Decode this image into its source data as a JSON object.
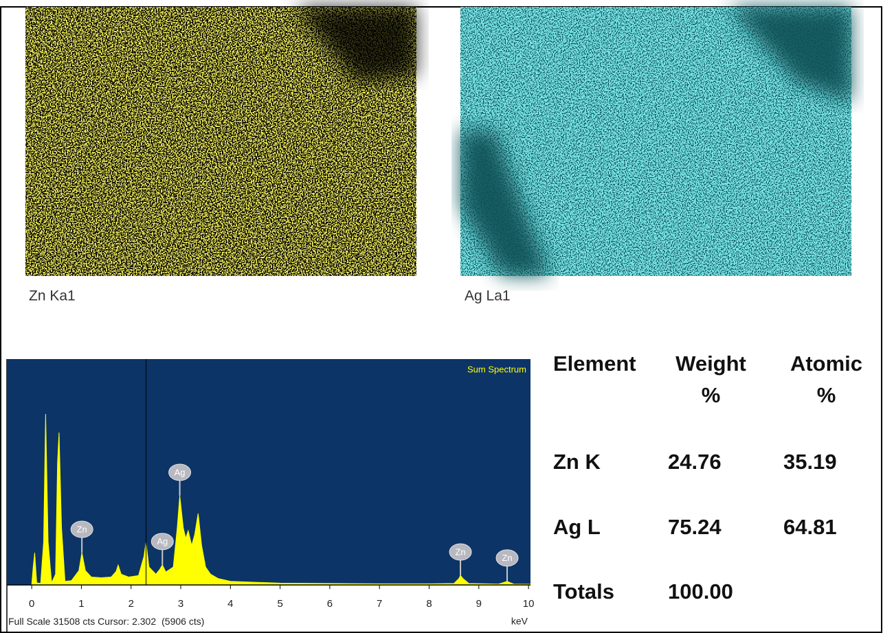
{
  "maps": [
    {
      "label": "Zn Ka1"
    },
    {
      "label": "Ag La1"
    }
  ],
  "chart_data": {
    "type": "area",
    "title": "Sum Spectrum",
    "color": "#ffff00",
    "background": "#0c3466",
    "x": [
      -0.5,
      0,
      0.03,
      0.06,
      0.1,
      0.18,
      0.24,
      0.28,
      0.33,
      0.4,
      0.48,
      0.52,
      0.55,
      0.6,
      0.67,
      0.8,
      0.95,
      1.01,
      1.08,
      1.2,
      1.4,
      1.6,
      1.7,
      1.74,
      1.8,
      1.95,
      2.15,
      2.26,
      2.3,
      2.36,
      2.5,
      2.58,
      2.63,
      2.7,
      2.85,
      2.93,
      2.98,
      3.05,
      3.1,
      3.15,
      3.22,
      3.28,
      3.35,
      3.42,
      3.5,
      3.6,
      3.75,
      4,
      5,
      6,
      7,
      8,
      8.5,
      8.6,
      8.63,
      8.68,
      8.8,
      9.4,
      9.57,
      9.7,
      10.04
    ],
    "values": [
      0,
      0,
      2500,
      4500,
      300,
      200,
      6000,
      23850,
      6000,
      300,
      1500,
      17000,
      21260,
      8000,
      500,
      600,
      2000,
      4500,
      2000,
      1100,
      1000,
      1100,
      1900,
      2780,
      1500,
      1100,
      1300,
      4000,
      5940,
      2500,
      1500,
      2200,
      2800,
      1800,
      2500,
      8000,
      12450,
      8000,
      6500,
      7570,
      5500,
      7000,
      9960,
      5500,
      2500,
      1500,
      900,
      500,
      250,
      200,
      150,
      150,
      200,
      900,
      1340,
      900,
      200,
      120,
      500,
      120,
      100
    ],
    "xlim": [
      -0.5,
      10.04
    ],
    "xticks": [
      0,
      1,
      2,
      3,
      4,
      5,
      6,
      7,
      8,
      9,
      10
    ],
    "x_unit": "keV",
    "ylim": [
      0,
      31508
    ],
    "annotations": [
      {
        "text": "Zn",
        "x": 1.01
      },
      {
        "text": "Ag",
        "x": 2.63
      },
      {
        "text": "Ag",
        "x": 2.98
      },
      {
        "text": "Zn",
        "x": 8.63
      },
      {
        "text": "Zn",
        "x": 9.57
      }
    ],
    "footer_labels": [
      "Full Scale",
      "cts Cursor:"
    ],
    "cursor": {
      "x": 2.302,
      "label": "(5906 cts)"
    }
  },
  "table": {
    "header": [
      "Element",
      "Weight %",
      "Atomic %"
    ],
    "rows": [
      [
        "Zn K",
        "24.76",
        "35.19"
      ],
      [
        "Ag L",
        "75.24",
        "64.81"
      ],
      [
        "Totals",
        "100.00"
      ]
    ]
  }
}
